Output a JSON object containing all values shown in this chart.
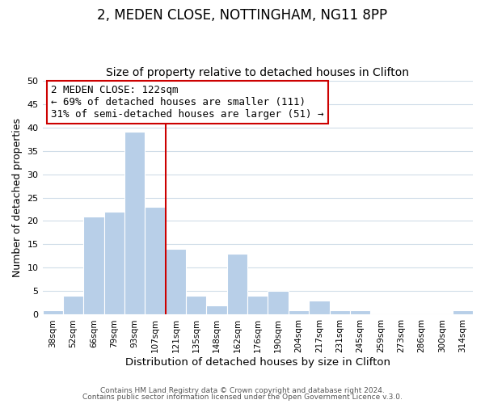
{
  "title": "2, MEDEN CLOSE, NOTTINGHAM, NG11 8PP",
  "subtitle": "Size of property relative to detached houses in Clifton",
  "xlabel": "Distribution of detached houses by size in Clifton",
  "ylabel": "Number of detached properties",
  "bar_labels": [
    "38sqm",
    "52sqm",
    "66sqm",
    "79sqm",
    "93sqm",
    "107sqm",
    "121sqm",
    "135sqm",
    "148sqm",
    "162sqm",
    "176sqm",
    "190sqm",
    "204sqm",
    "217sqm",
    "231sqm",
    "245sqm",
    "259sqm",
    "273sqm",
    "286sqm",
    "300sqm",
    "314sqm"
  ],
  "bar_heights": [
    1,
    4,
    21,
    22,
    39,
    23,
    14,
    4,
    2,
    13,
    4,
    5,
    1,
    3,
    1,
    1,
    0,
    0,
    0,
    0,
    1
  ],
  "bar_color": "#b8cfe8",
  "bar_edge_color": "#b8cfe8",
  "vline_color": "#cc0000",
  "ylim": [
    0,
    50
  ],
  "yticks": [
    0,
    5,
    10,
    15,
    20,
    25,
    30,
    35,
    40,
    45,
    50
  ],
  "annotation_title": "2 MEDEN CLOSE: 122sqm",
  "annotation_line1": "← 69% of detached houses are smaller (111)",
  "annotation_line2": "31% of semi-detached houses are larger (51) →",
  "annotation_box_color": "#ffffff",
  "annotation_box_edge": "#cc0000",
  "footer1": "Contains HM Land Registry data © Crown copyright and database right 2024.",
  "footer2": "Contains public sector information licensed under the Open Government Licence v.3.0.",
  "background_color": "#ffffff",
  "grid_color": "#d0dde8",
  "title_fontsize": 12,
  "subtitle_fontsize": 10,
  "annotation_fontsize": 9
}
